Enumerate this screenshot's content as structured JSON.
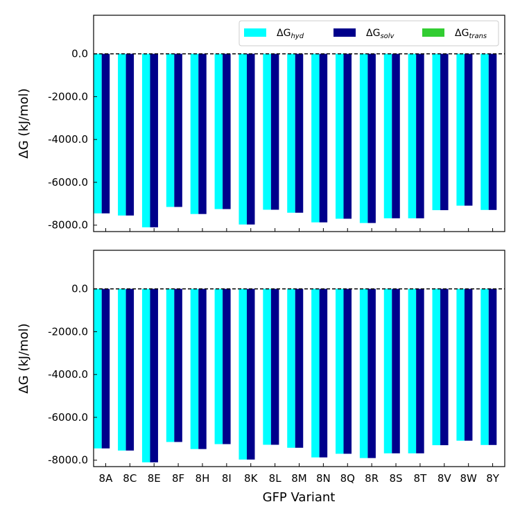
{
  "chart_data": {
    "type": "bar",
    "xlabel": "GFP Variant",
    "ylabel": "ΔG (kJ/mol)",
    "ylim": [
      -8300,
      1800
    ],
    "yticks": [
      "0.0",
      "-2000.0",
      "-4000.0",
      "-6000.0",
      "-8000.0"
    ],
    "ytick_values": [
      0,
      -2000,
      -4000,
      -6000,
      -8000
    ],
    "reference_line": 0,
    "legend_position": "top-right",
    "categories": [
      "8A",
      "8C",
      "8E",
      "8F",
      "8H",
      "8I",
      "8K",
      "8L",
      "8M",
      "8N",
      "8Q",
      "8R",
      "8S",
      "8T",
      "8V",
      "8W",
      "8Y"
    ],
    "legend": [
      {
        "key": "hyd",
        "base": "ΔG",
        "sub": "hyd",
        "color": "#00ffff"
      },
      {
        "key": "solv",
        "base": "ΔG",
        "sub": "solv",
        "color": "#00008b"
      },
      {
        "key": "trans",
        "base": "ΔG",
        "sub": "trans",
        "color": "#32cd32"
      }
    ],
    "panels": [
      {
        "series": [
          {
            "key": "hyd",
            "values": [
              -7450,
              -7550,
              -8100,
              -7150,
              -7480,
              -7250,
              -7970,
              -7280,
              -7420,
              -7870,
              -7700,
              -7900,
              -7680,
              -7680,
              -7300,
              -7090,
              -7290
            ]
          },
          {
            "key": "solv",
            "values": [
              -7450,
              -7550,
              -8100,
              -7150,
              -7480,
              -7250,
              -7970,
              -7280,
              -7420,
              -7870,
              -7700,
              -7900,
              -7680,
              -7680,
              -7300,
              -7090,
              -7290
            ]
          },
          {
            "key": "trans",
            "values": [
              0,
              0,
              0,
              0,
              0,
              0,
              0,
              0,
              0,
              0,
              0,
              0,
              0,
              0,
              0,
              0,
              0
            ]
          }
        ]
      },
      {
        "series": [
          {
            "key": "hyd",
            "values": [
              -7450,
              -7550,
              -8100,
              -7150,
              -7480,
              -7250,
              -7970,
              -7280,
              -7420,
              -7870,
              -7700,
              -7900,
              -7680,
              -7680,
              -7300,
              -7090,
              -7290
            ]
          },
          {
            "key": "solv",
            "values": [
              -7450,
              -7550,
              -8100,
              -7150,
              -7480,
              -7250,
              -7970,
              -7280,
              -7420,
              -7870,
              -7700,
              -7900,
              -7680,
              -7680,
              -7300,
              -7090,
              -7290
            ]
          },
          {
            "key": "trans",
            "values": [
              0,
              0,
              0,
              0,
              0,
              0,
              0,
              0,
              0,
              0,
              0,
              0,
              0,
              0,
              0,
              0,
              0
            ]
          }
        ]
      }
    ]
  }
}
